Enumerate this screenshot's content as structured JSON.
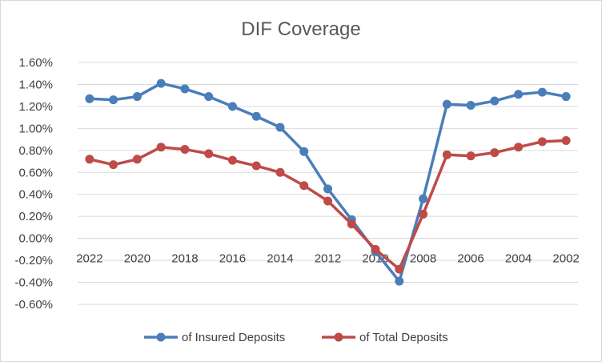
{
  "chart_data": {
    "type": "line",
    "title": "DIF Coverage",
    "xlabel": "",
    "ylabel": "",
    "x_reversed": true,
    "categories": [
      "2022",
      "2021",
      "2020",
      "2019",
      "2018",
      "2017",
      "2016",
      "2015",
      "2014",
      "2013",
      "2012",
      "2011",
      "2010",
      "2009",
      "2008",
      "2007",
      "2006",
      "2005",
      "2004",
      "2003",
      "2002"
    ],
    "x_tick_labels": [
      "2022",
      "2020",
      "2018",
      "2016",
      "2014",
      "2012",
      "2010",
      "2008",
      "2006",
      "2004",
      "2002"
    ],
    "y_tick_labels": [
      "1.60%",
      "1.40%",
      "1.20%",
      "1.00%",
      "0.80%",
      "0.60%",
      "0.40%",
      "0.20%",
      "0.00%",
      "-0.20%",
      "-0.40%",
      "-0.60%"
    ],
    "ylim": [
      -0.6,
      1.6
    ],
    "y_unit": "%",
    "grid": "horizontal",
    "legend_position": "bottom",
    "series": [
      {
        "name": "of Insured Deposits",
        "color": "#4a7ebb",
        "values": [
          1.27,
          1.26,
          1.29,
          1.41,
          1.36,
          1.29,
          1.2,
          1.11,
          1.01,
          0.79,
          0.45,
          0.17,
          -0.12,
          -0.39,
          0.36,
          1.22,
          1.21,
          1.25,
          1.31,
          1.33,
          1.29
        ]
      },
      {
        "name": "of Total Deposits",
        "color": "#be4b48",
        "values": [
          0.72,
          0.67,
          0.72,
          0.83,
          0.81,
          0.77,
          0.71,
          0.66,
          0.6,
          0.48,
          0.34,
          0.13,
          -0.1,
          -0.28,
          0.22,
          0.76,
          0.75,
          0.78,
          0.83,
          0.88,
          0.89
        ]
      }
    ]
  }
}
